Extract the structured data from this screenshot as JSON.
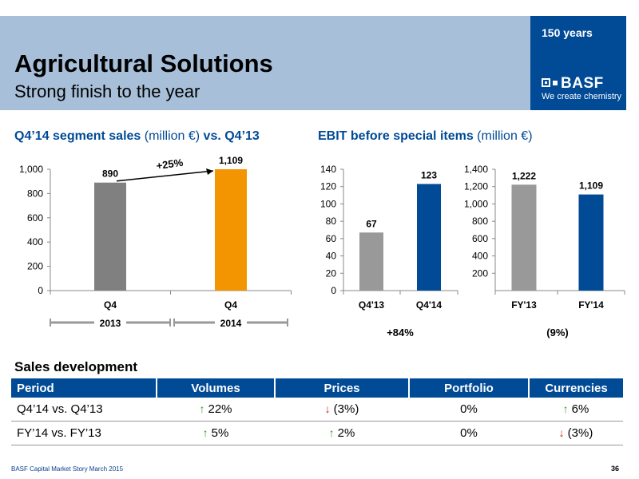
{
  "header": {
    "title": "Agricultural Solutions",
    "subtitle": "Strong finish to the year",
    "band_color": "#a7bfd8"
  },
  "logo": {
    "years": "150 years",
    "brand": "BASF",
    "tagline": "We create chemistry",
    "color": "#004a96"
  },
  "sales_chart": {
    "title_bold": "Q4’14 segment sales",
    "title_normal": " (million €) ",
    "title_bold2": "vs. Q4’13"
  },
  "ebit_chart": {
    "title_bold": "EBIT before special items",
    "title_normal": " (million €)"
  },
  "chart_data": [
    {
      "id": "sales",
      "type": "bar",
      "categories": [
        "Q4",
        "Q4"
      ],
      "category_sublabels": [
        "2013",
        "2014"
      ],
      "values": [
        890,
        1109
      ],
      "value_labels": [
        "890",
        "1,109"
      ],
      "colors": [
        "#808080",
        "#f39500"
      ],
      "ylim": [
        0,
        1000
      ],
      "yticks": [
        0,
        200,
        400,
        600,
        800,
        1000
      ],
      "ytick_labels": [
        "0",
        "200",
        "400",
        "600",
        "800",
        "1,000"
      ],
      "annotation": "+25%"
    },
    {
      "id": "ebit_q4",
      "type": "bar",
      "categories": [
        "Q4'13",
        "Q4'14"
      ],
      "values": [
        67,
        123
      ],
      "value_labels": [
        "67",
        "123"
      ],
      "colors": [
        "#999999",
        "#004a96"
      ],
      "ylim": [
        0,
        140
      ],
      "yticks": [
        0,
        20,
        40,
        60,
        80,
        100,
        120,
        140
      ],
      "ytick_labels": [
        "0",
        "20",
        "40",
        "60",
        "80",
        "100",
        "120",
        "140"
      ],
      "annotation": "+84%"
    },
    {
      "id": "ebit_fy",
      "type": "bar",
      "categories": [
        "FY'13",
        "FY'14"
      ],
      "values": [
        1222,
        1109
      ],
      "value_labels": [
        "1,222",
        "1,109"
      ],
      "colors": [
        "#999999",
        "#004a96"
      ],
      "ylim": [
        0,
        1400
      ],
      "yticks": [
        200,
        400,
        600,
        800,
        1000,
        1200,
        1400
      ],
      "ytick_labels": [
        "200",
        "400",
        "600",
        "800",
        "1,000",
        "1,200",
        "1,400"
      ],
      "annotation": "(9%)"
    }
  ],
  "sales_development": {
    "title": "Sales development",
    "columns": [
      "Period",
      "Volumes",
      "Prices",
      "Portfolio",
      "Currencies"
    ],
    "rows": [
      {
        "period": "Q4’14 vs. Q4’13",
        "volumes": {
          "dir": "up",
          "text": "22%"
        },
        "prices": {
          "dir": "down",
          "text": "(3%)"
        },
        "portfolio": {
          "dir": "",
          "text": "0%"
        },
        "currencies": {
          "dir": "up",
          "text": "6%"
        }
      },
      {
        "period": "FY’14 vs. FY’13",
        "volumes": {
          "dir": "up",
          "text": "5%"
        },
        "prices": {
          "dir": "up",
          "text": "2%"
        },
        "portfolio": {
          "dir": "",
          "text": "0%"
        },
        "currencies": {
          "dir": "down",
          "text": "(3%)"
        }
      }
    ]
  },
  "footer": {
    "source": "BASF Capital Market Story March 2015",
    "page": "36"
  }
}
